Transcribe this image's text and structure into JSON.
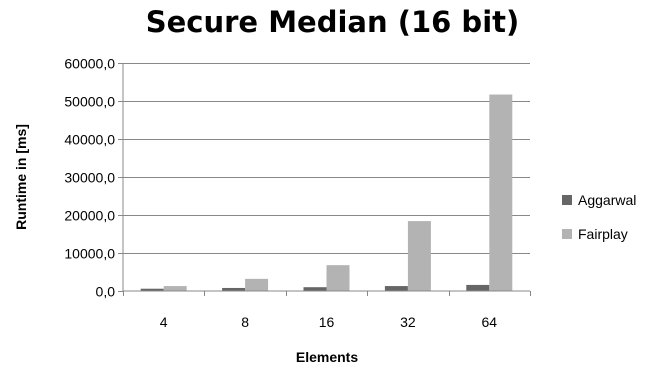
{
  "chart_data": {
    "type": "bar",
    "title": "Secure Median (16 bit)",
    "xlabel": "Elements",
    "ylabel": "Runtime in [ms]",
    "categories": [
      "4",
      "8",
      "16",
      "32",
      "64"
    ],
    "series": [
      {
        "name": "Aggarwal",
        "color": "#666666",
        "values": [
          600,
          800,
          1000,
          1300,
          1600
        ]
      },
      {
        "name": "Fairplay",
        "color": "#b3b3b3",
        "values": [
          1300,
          3200,
          6800,
          18400,
          51700
        ]
      }
    ],
    "ylim": [
      0,
      60000
    ],
    "yticks": [
      0,
      10000,
      20000,
      30000,
      40000,
      50000,
      60000
    ],
    "ytick_labels": [
      "0,0",
      "10000,0",
      "20000,0",
      "30000,0",
      "40000,0",
      "50000,0",
      "60000,0"
    ],
    "grid": true,
    "legend_position": "right"
  }
}
